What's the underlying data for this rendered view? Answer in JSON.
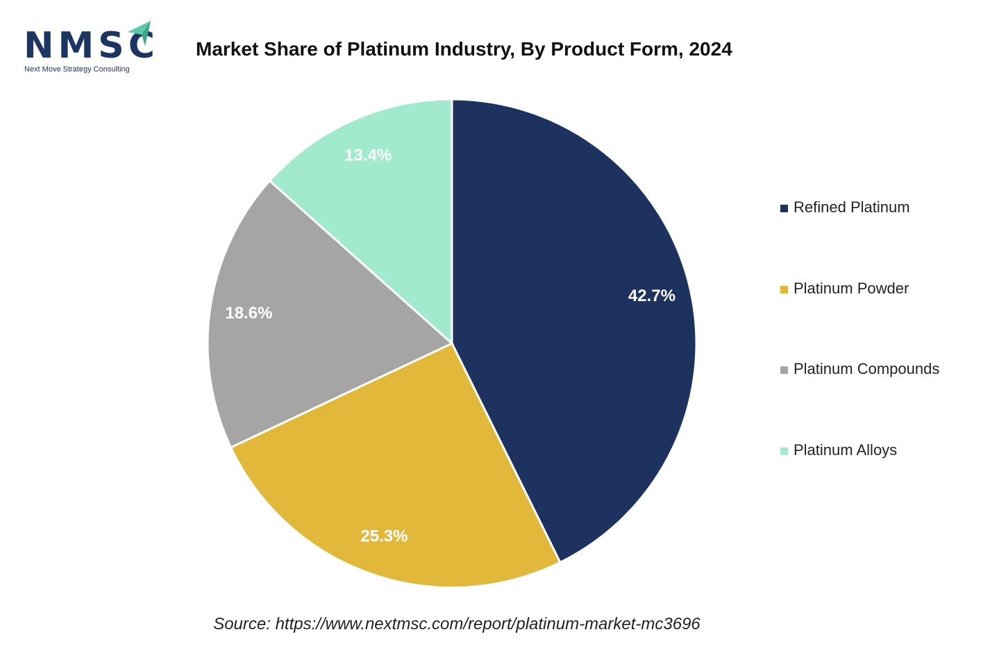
{
  "logo": {
    "name": "NMSC",
    "tagline": "Next Move Strategy Consulting",
    "accent": "#5ec9a8"
  },
  "chart_data": {
    "type": "pie",
    "title": "Market Share of Platinum Industry, By Product Form, 2024",
    "categories": [
      "Refined Platinum",
      "Platinum Powder",
      "Platinum Compounds",
      "Platinum Alloys"
    ],
    "values": [
      42.7,
      25.3,
      18.6,
      13.4
    ],
    "labels": [
      "42.7%",
      "25.3%",
      "18.6%",
      "13.4%"
    ],
    "colors": [
      "#1e3260",
      "#e1b83a",
      "#a5a5a5",
      "#a1eace"
    ],
    "legend_position": "right",
    "start_angle": "12 o'clock, clockwise"
  },
  "source": "Source: https://www.nextmsc.com/report/platinum-market-mc3696"
}
